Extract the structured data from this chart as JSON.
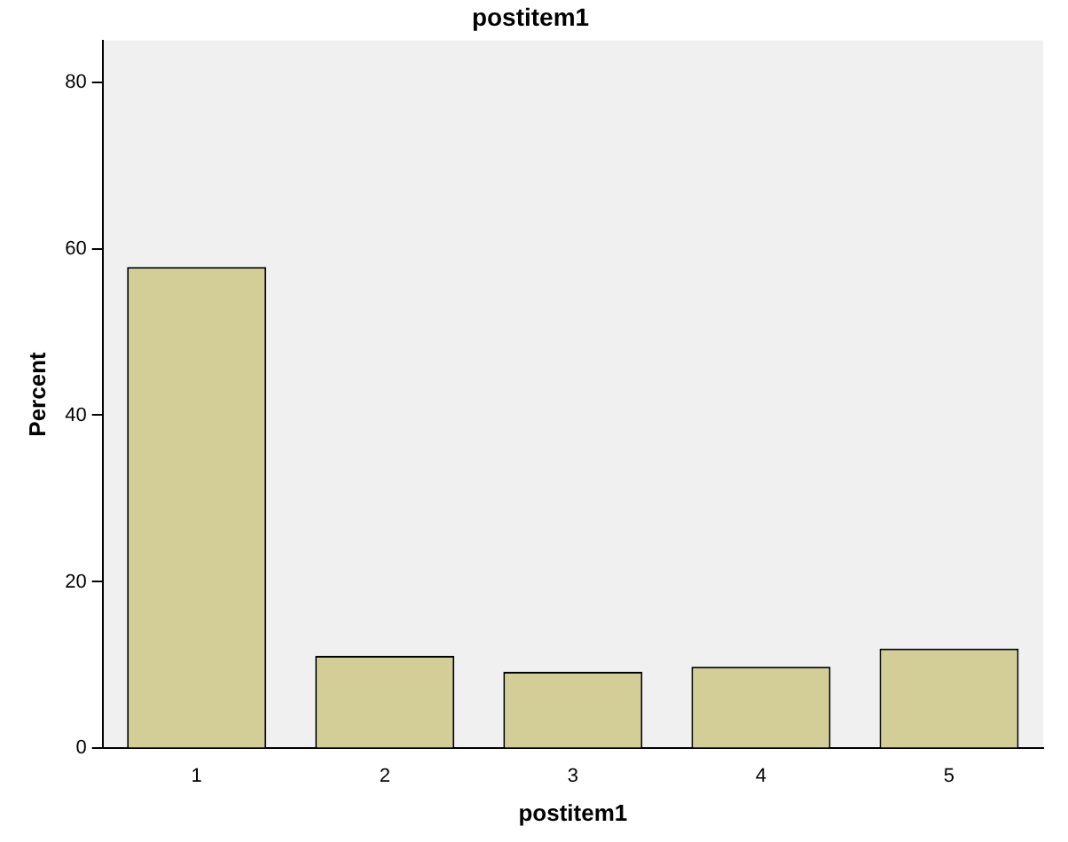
{
  "chart_data": {
    "type": "bar",
    "title": "postitem1",
    "xlabel": "postitem1",
    "ylabel": "Percent",
    "categories": [
      "1",
      "2",
      "3",
      "4",
      "5"
    ],
    "values": [
      57.8,
      11.1,
      9.2,
      9.8,
      12.0
    ],
    "color": "#d3ce97",
    "ylim": [
      0,
      85
    ],
    "yticks": [
      0,
      20,
      40,
      60,
      80
    ],
    "grid": false,
    "legend": false
  }
}
